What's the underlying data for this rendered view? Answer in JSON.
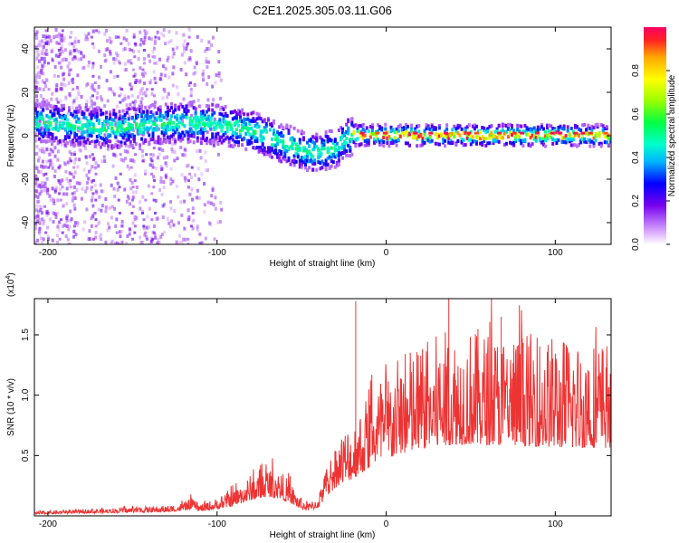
{
  "title": "C2E1.2025.305.03.11.G06",
  "chart_data": [
    {
      "type": "heatmap",
      "xlabel": "Height of straight line (km)",
      "ylabel": "Frequency (Hz)",
      "xlim": [
        -208,
        133
      ],
      "ylim": [
        -50,
        50
      ],
      "xticks": [
        -200,
        -100,
        0,
        100
      ],
      "xtick_labels": [
        "-200",
        "-100",
        "0",
        "100"
      ],
      "yticks": [
        -40,
        -20,
        0,
        20,
        40
      ],
      "ytick_labels": [
        "-40",
        "-20",
        "0",
        "20",
        "40"
      ],
      "ridge": {
        "x": [
          -205,
          -180,
          -160,
          -140,
          -120,
          -100,
          -80,
          -60,
          -50,
          -42,
          -30,
          -24,
          -20,
          0,
          50,
          100,
          133
        ],
        "freq": [
          7,
          5,
          4,
          6,
          7,
          6,
          3,
          -3,
          -6,
          -7,
          -5,
          0,
          1,
          1,
          1,
          1,
          1
        ]
      },
      "colorbar": {
        "label": "Normalized spectral amplitude",
        "range": [
          0,
          1
        ],
        "ticks": [
          0.0,
          0.2,
          0.4,
          0.6,
          0.8
        ],
        "tick_labels": [
          "0.0",
          "0.2",
          "0.4",
          "0.6",
          "0.8"
        ]
      }
    },
    {
      "type": "line",
      "xlabel": "Height of straight line (km)",
      "ylabel": "SNR (10 * v/v)",
      "scale_label": "(x10",
      "scale_exp": "4",
      "scale_close": ")",
      "xlim": [
        -208,
        133
      ],
      "ylim": [
        0,
        18000
      ],
      "xticks": [
        -200,
        -100,
        0,
        100
      ],
      "xtick_labels": [
        "-200",
        "-100",
        "0",
        "100"
      ],
      "yticks": [
        5000,
        10000,
        15000
      ],
      "ytick_labels": [
        "0.5",
        "1.0",
        "1.5"
      ],
      "color": "#ee3333",
      "envelope_x": [
        -208,
        -190,
        -170,
        -150,
        -130,
        -120,
        -115,
        -110,
        -100,
        -90,
        -80,
        -70,
        -62,
        -55,
        -50,
        -45,
        -40,
        -35,
        -30,
        -25,
        -20,
        -15,
        -10,
        -5,
        0,
        10,
        20,
        30,
        40,
        50,
        60,
        70,
        80,
        90,
        100,
        110,
        120,
        133
      ],
      "envelope_y": [
        300,
        400,
        500,
        600,
        700,
        900,
        1200,
        800,
        1200,
        1800,
        2800,
        3400,
        3000,
        2000,
        1200,
        900,
        1500,
        3500,
        5000,
        6000,
        6500,
        7500,
        8500,
        9500,
        10000,
        11000,
        11800,
        12300,
        12600,
        12700,
        12600,
        12500,
        12400,
        12300,
        12200,
        12100,
        12100,
        12000
      ],
      "spikes": [
        {
          "x": -18,
          "y": 17800
        },
        {
          "x": 37,
          "y": 18200
        },
        {
          "x": 68,
          "y": 16500
        }
      ]
    }
  ]
}
